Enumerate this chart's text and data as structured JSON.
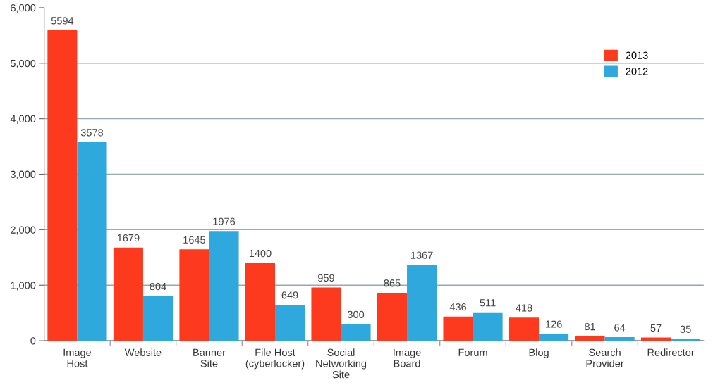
{
  "chart_data": {
    "type": "bar",
    "categories": [
      "Image\nHost",
      "Website",
      "Banner\nSite",
      "File Host\n(cyberlocker)",
      "Social\nNetworking\nSite",
      "Image\nBoard",
      "Forum",
      "Blog",
      "Search\nProvider",
      "Redirector"
    ],
    "series": [
      {
        "name": "2013",
        "color": "#fe3a1e",
        "values": [
          5594,
          1679,
          1645,
          1400,
          959,
          865,
          436,
          418,
          81,
          57
        ]
      },
      {
        "name": "2012",
        "color": "#2fa8de",
        "values": [
          3578,
          804,
          1976,
          649,
          300,
          1367,
          511,
          126,
          64,
          35
        ]
      }
    ],
    "ylim": [
      0,
      6000
    ],
    "yticks": [
      0,
      {
        "value": 1000,
        "label": "1,000"
      },
      {
        "value": 2000,
        "label": "2,000"
      },
      {
        "value": 3000,
        "label": "3,000"
      },
      {
        "value": 4000,
        "label": "4,000"
      },
      {
        "value": 5000,
        "label": "5,000"
      },
      {
        "value": 6000,
        "label": "6,000"
      }
    ],
    "grid": "y",
    "legend": "top right",
    "data_labels": true
  }
}
